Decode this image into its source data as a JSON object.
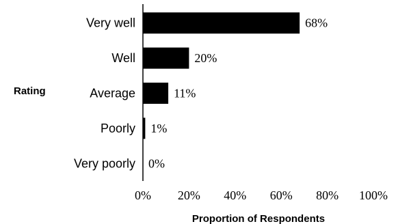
{
  "chart_data": {
    "type": "bar",
    "orientation": "horizontal",
    "categories": [
      "Very well",
      "Well",
      "Average",
      "Poorly",
      "Very poorly"
    ],
    "values": [
      68,
      20,
      11,
      1,
      0
    ],
    "data_labels": [
      "68%",
      "20%",
      "11%",
      "1%",
      "0%"
    ],
    "xlabel": "Proportion of Respondents",
    "ylabel": "Rating",
    "xlim": [
      0,
      100
    ],
    "xticks": [
      0,
      20,
      40,
      60,
      80,
      100
    ],
    "xtick_labels": [
      "0%",
      "20%",
      "40%",
      "60%",
      "80%",
      "100%"
    ],
    "grid": false,
    "bar_color": "#000000"
  }
}
